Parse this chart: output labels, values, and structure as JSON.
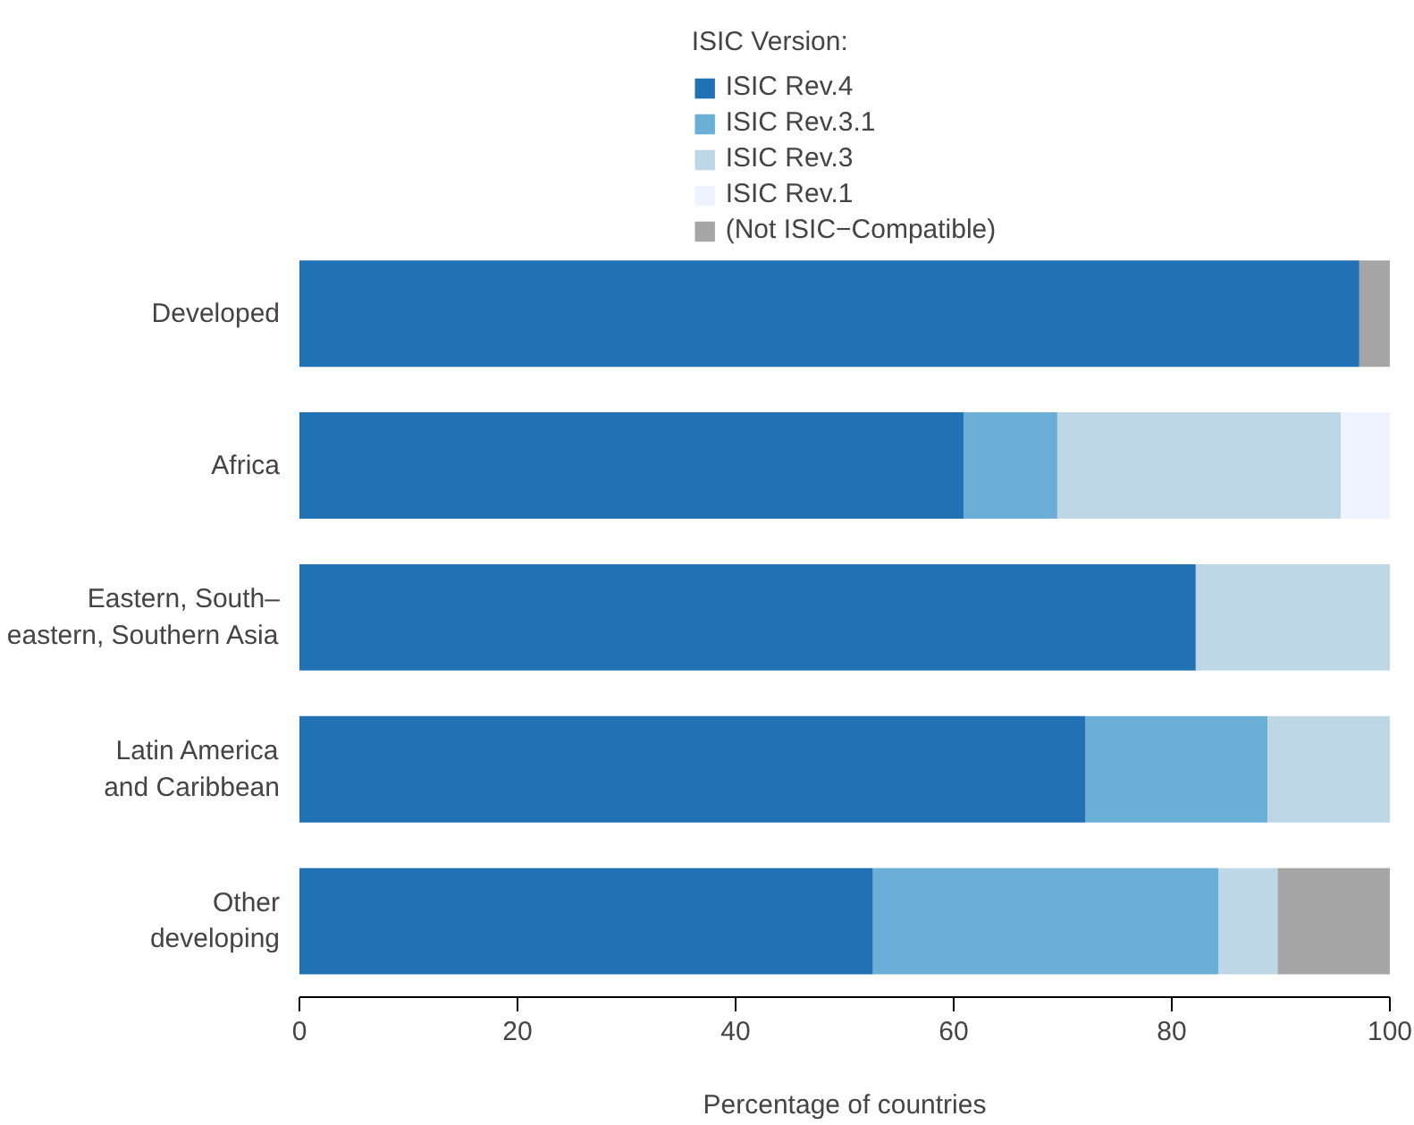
{
  "chart_data": {
    "type": "bar",
    "orientation": "horizontal",
    "stacked": true,
    "xlabel": "Percentage of countries",
    "legend_title": "ISIC Version:",
    "legend": "top",
    "grid": false,
    "categories": [
      "Developed",
      "Africa",
      "Eastern, South–\neastern, Southern Asia",
      "Latin America\nand Caribbean",
      "Other\ndeveloping"
    ],
    "xlim": [
      0,
      100
    ],
    "xticks": [
      0,
      20,
      40,
      60,
      80,
      100
    ],
    "series": [
      {
        "name": "ISIC Rev.4",
        "color": "#2171b5",
        "values": [
          97.2,
          60.9,
          82.2,
          72.1,
          52.6
        ]
      },
      {
        "name": "ISIC Rev.3.1",
        "color": "#6baed6",
        "values": [
          0,
          8.6,
          0,
          16.7,
          31.7
        ]
      },
      {
        "name": "ISIC Rev.3",
        "color": "#bdd7e7",
        "values": [
          0,
          26.0,
          17.8,
          11.2,
          5.4
        ]
      },
      {
        "name": "ISIC Rev.1",
        "color": "#eff3ff",
        "values": [
          0,
          4.5,
          0,
          0,
          0
        ]
      },
      {
        "name": "(Not ISIC−Compatible)",
        "color": "#a6a6a6",
        "values": [
          2.8,
          0,
          0,
          0,
          10.3
        ]
      }
    ]
  }
}
